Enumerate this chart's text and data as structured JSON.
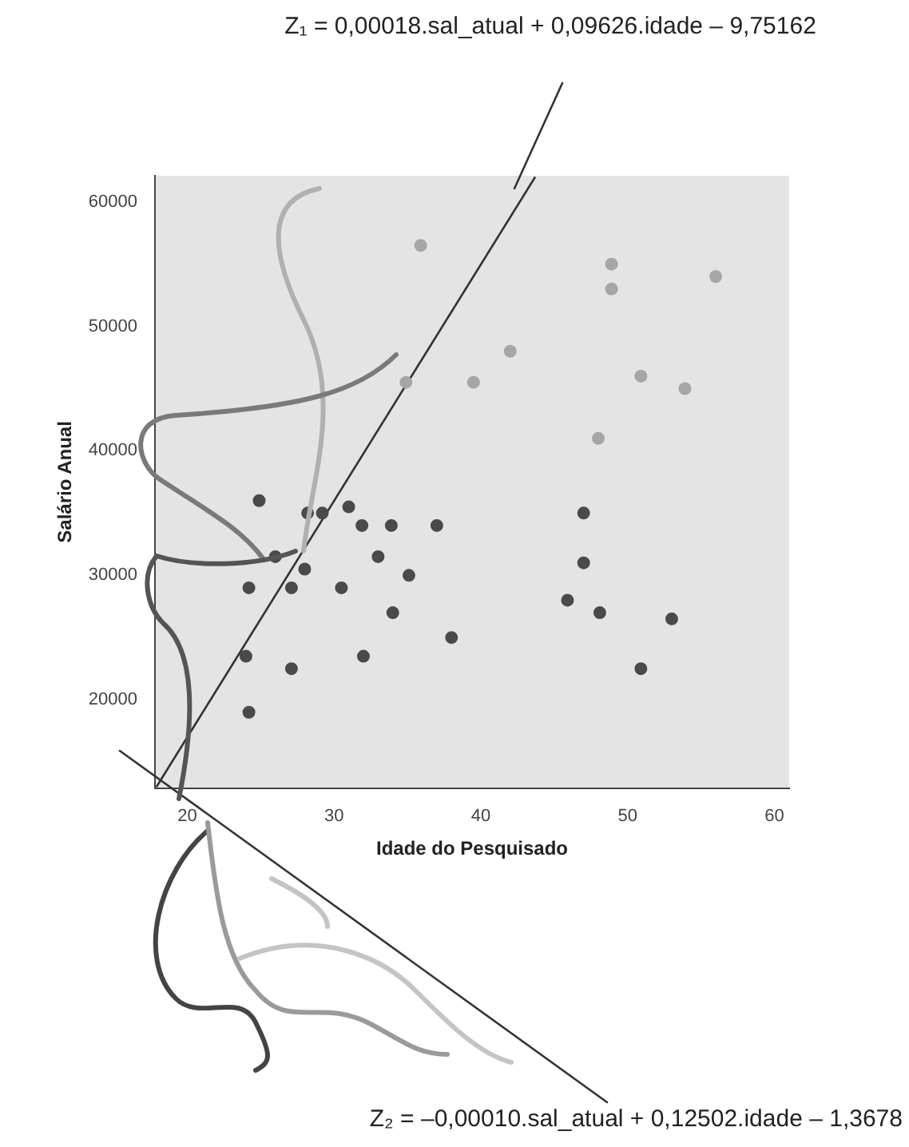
{
  "chart_data": {
    "type": "scatter",
    "xlabel": "Idade do Pesquisado",
    "ylabel": "Salário Anual",
    "annotations": [
      "Z₁ = 0,00018.sal_atual + 0,09626.idade – 9,75162",
      "Z₂ = –0,00010.sal_atual + 0,12502.idade – 1,3678"
    ],
    "xlim": [
      17.8,
      61
    ],
    "xticks": [
      20,
      30,
      40,
      50,
      60
    ],
    "ylim": [
      12900,
      62100
    ],
    "yticks": [
      20000,
      30000,
      40000,
      50000,
      60000
    ],
    "grid": false,
    "legend": false,
    "marker": "circle",
    "series": [
      {
        "type": "scatter",
        "color": "#a6a6a6",
        "x": [
          35.9,
          42.0,
          34.9,
          39.5,
          48.9,
          48.9,
          56.0,
          50.9,
          53.9,
          48.0
        ],
        "values": [
          56500,
          48000,
          45500,
          45500,
          55000,
          53000,
          54000,
          46000,
          45000,
          41000
        ]
      },
      {
        "type": "scatter",
        "color": "#4a4a4a",
        "x": [
          24.9,
          28.2,
          29.2,
          31.0,
          31.9,
          33.9,
          37.0,
          33.0,
          28.0,
          35.1,
          27.1,
          30.5,
          24.2,
          26.0,
          34.0,
          38.0,
          24.0,
          32.0,
          27.1,
          24.2,
          47.0,
          47.0,
          45.9,
          48.1,
          53.0,
          50.9
        ],
        "values": [
          36000,
          35000,
          35000,
          35500,
          34000,
          34000,
          34000,
          31500,
          30500,
          30000,
          29000,
          29000,
          29000,
          31500,
          27000,
          25000,
          23500,
          23500,
          22500,
          19000,
          35000,
          31000,
          28000,
          27000,
          26500,
          22500
        ]
      },
      {
        "type": "line",
        "color": "#333333",
        "line_style": "solid",
        "marker": "none",
        "x": [
          17.9,
          43.7
        ],
        "values": [
          13000,
          62000
        ]
      }
    ]
  }
}
